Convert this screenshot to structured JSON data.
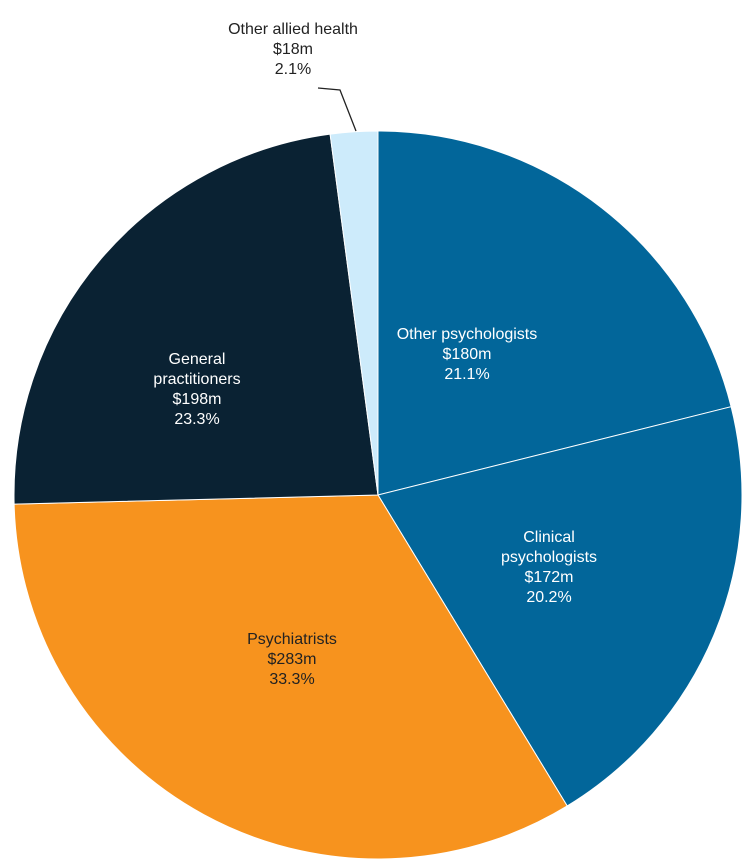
{
  "chart_data": {
    "type": "pie",
    "categories": [
      "Other psychologists",
      "Clinical psychologists",
      "Psychiatrists",
      "General practitioners",
      "Other allied health"
    ],
    "values": [
      21.1,
      20.2,
      33.3,
      23.3,
      2.1
    ],
    "value_labels": [
      "21.1%",
      "20.2%",
      "33.3%",
      "23.3%",
      "2.1%"
    ],
    "amount_labels": [
      "$180m",
      "$172m",
      "$283m",
      "$198m",
      "$18m"
    ],
    "colors": [
      "#02669a",
      "#02669a",
      "#f7931e",
      "#0a2233",
      "#cdebfb"
    ]
  }
}
